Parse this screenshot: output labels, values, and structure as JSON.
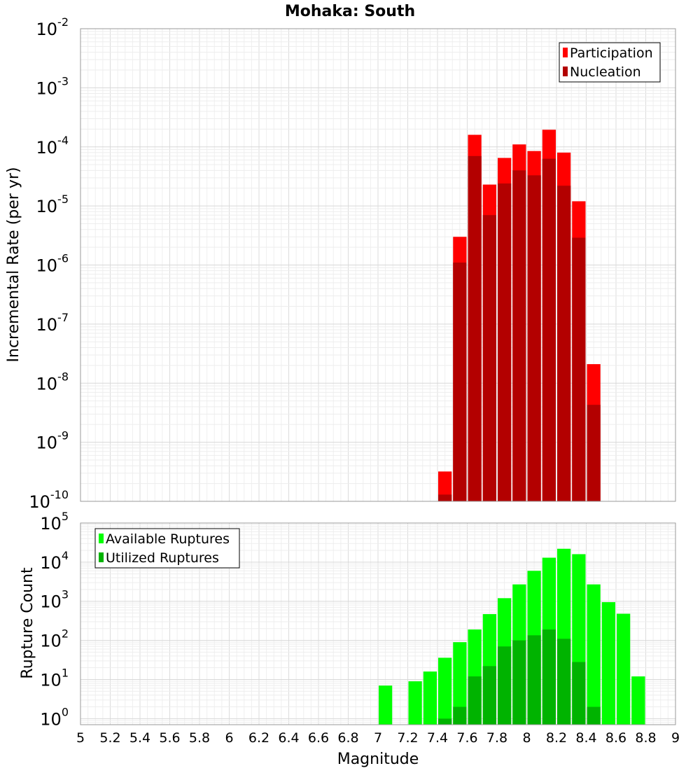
{
  "title": "Mohaka: South",
  "xlabel": "Magnitude",
  "chart_data": [
    {
      "type": "bar",
      "panel": "top",
      "ylabel": "Incremental Rate (per yr)",
      "yscale": "log",
      "ylim": [
        1e-10,
        0.01
      ],
      "xlim": [
        5,
        9
      ],
      "bar_width": 0.1,
      "legend_position": "top-right",
      "grid": true,
      "y_tick_exponents": [
        "-2",
        "-3",
        "-4",
        "-5",
        "-6",
        "-7",
        "-8",
        "-9",
        "-10"
      ],
      "series": [
        {
          "name": "Participation",
          "color": "#ff0000",
          "points": [
            {
              "x": 7.45,
              "y": 3.2e-10
            },
            {
              "x": 7.55,
              "y": 3e-06
            },
            {
              "x": 7.65,
              "y": 0.00016
            },
            {
              "x": 7.75,
              "y": 2.3e-05
            },
            {
              "x": 7.85,
              "y": 6.5e-05
            },
            {
              "x": 7.95,
              "y": 0.00011
            },
            {
              "x": 8.05,
              "y": 8.5e-05
            },
            {
              "x": 8.15,
              "y": 0.000195
            },
            {
              "x": 8.25,
              "y": 8e-05
            },
            {
              "x": 8.35,
              "y": 1.2e-05
            },
            {
              "x": 8.45,
              "y": 2.1e-08
            }
          ]
        },
        {
          "name": "Nucleation",
          "color": "#b30000",
          "points": [
            {
              "x": 7.45,
              "y": 1.3e-10
            },
            {
              "x": 7.55,
              "y": 1.1e-06
            },
            {
              "x": 7.65,
              "y": 7e-05
            },
            {
              "x": 7.75,
              "y": 7e-06
            },
            {
              "x": 7.85,
              "y": 2.4e-05
            },
            {
              "x": 7.95,
              "y": 4e-05
            },
            {
              "x": 8.05,
              "y": 3.3e-05
            },
            {
              "x": 8.15,
              "y": 6.3e-05
            },
            {
              "x": 8.25,
              "y": 2.2e-05
            },
            {
              "x": 8.35,
              "y": 2.9e-06
            },
            {
              "x": 8.45,
              "y": 4.3e-09
            }
          ]
        }
      ]
    },
    {
      "type": "bar",
      "panel": "bottom",
      "ylabel": "Rupture Count",
      "yscale": "log",
      "ylim": [
        0.7,
        100000
      ],
      "xlim": [
        5,
        9
      ],
      "bar_width": 0.1,
      "legend_position": "top-left",
      "grid": true,
      "y_tick_exponents": [
        "5",
        "4",
        "3",
        "2",
        "1",
        "0"
      ],
      "series": [
        {
          "name": "Available Ruptures",
          "color": "#00ff00",
          "points": [
            {
              "x": 7.05,
              "y": 7
            },
            {
              "x": 7.25,
              "y": 9
            },
            {
              "x": 7.35,
              "y": 16
            },
            {
              "x": 7.45,
              "y": 36
            },
            {
              "x": 7.55,
              "y": 90
            },
            {
              "x": 7.65,
              "y": 190
            },
            {
              "x": 7.75,
              "y": 470
            },
            {
              "x": 7.85,
              "y": 1200
            },
            {
              "x": 7.95,
              "y": 2700
            },
            {
              "x": 8.05,
              "y": 6000
            },
            {
              "x": 8.15,
              "y": 13000
            },
            {
              "x": 8.25,
              "y": 22000
            },
            {
              "x": 8.35,
              "y": 16000
            },
            {
              "x": 8.45,
              "y": 2700
            },
            {
              "x": 8.55,
              "y": 950
            },
            {
              "x": 8.65,
              "y": 480
            },
            {
              "x": 8.75,
              "y": 12
            }
          ]
        },
        {
          "name": "Utilized Ruptures",
          "color": "#00b300",
          "points": [
            {
              "x": 7.45,
              "y": 1
            },
            {
              "x": 7.55,
              "y": 2
            },
            {
              "x": 7.65,
              "y": 12
            },
            {
              "x": 7.75,
              "y": 22
            },
            {
              "x": 7.85,
              "y": 70
            },
            {
              "x": 7.95,
              "y": 100
            },
            {
              "x": 8.05,
              "y": 135
            },
            {
              "x": 8.15,
              "y": 190
            },
            {
              "x": 8.25,
              "y": 110
            },
            {
              "x": 8.35,
              "y": 28
            },
            {
              "x": 8.45,
              "y": 2
            }
          ]
        }
      ]
    }
  ],
  "x_ticks": [
    "5",
    "5.2",
    "5.4",
    "5.6",
    "5.8",
    "6",
    "6.2",
    "6.4",
    "6.6",
    "6.8",
    "7",
    "7.2",
    "7.4",
    "7.6",
    "7.8",
    "8",
    "8.2",
    "8.4",
    "8.6",
    "8.8",
    "9"
  ]
}
